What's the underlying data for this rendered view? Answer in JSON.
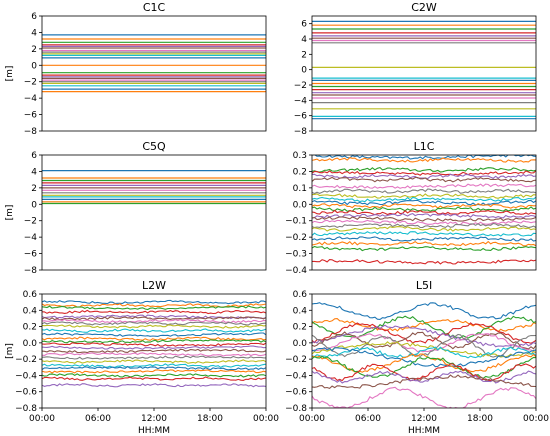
{
  "chart_data": [
    {
      "type": "line",
      "title": "C1C",
      "ylabel": "[m]",
      "xlabel": "",
      "ylim": [
        -8,
        6
      ],
      "yticks": [
        "−8",
        "−6",
        "−4",
        "−2",
        "0",
        "2",
        "4",
        "6"
      ],
      "xticks": [],
      "grid": false,
      "legend": "none",
      "levels": [
        3.7,
        3.2,
        2.8,
        2.5,
        2.3,
        2.1,
        1.8,
        1.6,
        1.4,
        1.2,
        0.9,
        0.0,
        -0.9,
        -1.2,
        -1.4,
        -1.6,
        -1.8,
        -2.0,
        -2.2,
        -2.5,
        -2.9,
        -3.2
      ],
      "noise": 0
    },
    {
      "type": "line",
      "title": "C2W",
      "ylabel": "",
      "xlabel": "",
      "ylim": [
        -8,
        7
      ],
      "yticks": [
        "−8",
        "−6",
        "−4",
        "−2",
        "0",
        "2",
        "4",
        "6"
      ],
      "xticks": [],
      "grid": false,
      "legend": "none",
      "levels": [
        6.3,
        5.8,
        5.3,
        4.8,
        4.4,
        4.1,
        3.8,
        3.5,
        0.3,
        -1.1,
        -1.4,
        -1.8,
        -2.2,
        -2.6,
        -3.0,
        -3.3,
        -3.7,
        -4.3,
        -5.1,
        -6.1,
        -6.4
      ],
      "noise": 0
    },
    {
      "type": "line",
      "title": "C5Q",
      "ylabel": "[m]",
      "xlabel": "",
      "ylim": [
        -8,
        6
      ],
      "yticks": [
        "−8",
        "−6",
        "−4",
        "−2",
        "0",
        "2",
        "4",
        "6"
      ],
      "xticks": [],
      "grid": false,
      "legend": "none",
      "levels": [
        4.1,
        3.2,
        2.9,
        2.6,
        2.3,
        2.0,
        1.7,
        1.4,
        1.1,
        0.9,
        0.6,
        0.3,
        0.1
      ],
      "noise": 0
    },
    {
      "type": "line",
      "title": "L1C",
      "ylabel": "",
      "xlabel": "",
      "ylim": [
        -0.4,
        0.3
      ],
      "yticks": [
        "−0.4",
        "−0.3",
        "−0.2",
        "−0.1",
        "0.0",
        "0.1",
        "0.2",
        "0.3"
      ],
      "xticks": [],
      "grid": false,
      "legend": "none",
      "levels": [
        0.29,
        0.27,
        0.21,
        0.19,
        0.17,
        0.15,
        0.11,
        0.08,
        0.05,
        0.03,
        0.01,
        -0.01,
        -0.03,
        -0.05,
        -0.07,
        -0.09,
        -0.11,
        -0.13,
        -0.15,
        -0.18,
        -0.21,
        -0.24,
        -0.27,
        -0.35
      ],
      "noise": 0.008
    },
    {
      "type": "line",
      "title": "L2W",
      "ylabel": "[m]",
      "xlabel": "HH:MM",
      "ylim": [
        -0.8,
        0.6
      ],
      "yticks": [
        "−0.8",
        "−0.6",
        "−0.4",
        "−0.2",
        "0.0",
        "0.2",
        "0.4",
        "0.6"
      ],
      "xticks": [
        "00:00",
        "06:00",
        "12:00",
        "18:00",
        "00:00"
      ],
      "grid": false,
      "legend": "none",
      "levels": [
        0.5,
        0.46,
        0.43,
        0.38,
        0.32,
        0.3,
        0.27,
        0.24,
        0.2,
        0.15,
        0.1,
        0.05,
        0.02,
        -0.02,
        -0.06,
        -0.1,
        -0.14,
        -0.18,
        -0.23,
        -0.28,
        -0.31,
        -0.35,
        -0.4,
        -0.44,
        -0.52
      ],
      "noise": 0.012
    },
    {
      "type": "line",
      "title": "L5I",
      "ylabel": "",
      "xlabel": "HH:MM",
      "ylim": [
        -0.8,
        0.6
      ],
      "yticks": [
        "−0.8",
        "−0.6",
        "−0.4",
        "−0.2",
        "0.0",
        "0.2",
        "0.4",
        "0.6"
      ],
      "xticks": [
        "00:00",
        "06:00",
        "12:00",
        "18:00",
        "00:00"
      ],
      "grid": false,
      "legend": "none",
      "levels": [
        0.39,
        0.22,
        0.19,
        0.12,
        0.08,
        0.03,
        0.0,
        -0.04,
        -0.08,
        -0.12,
        -0.18,
        -0.25,
        -0.3,
        -0.36,
        -0.42,
        -0.48,
        -0.68
      ],
      "noise": 0.02,
      "wavy": true
    }
  ],
  "colors": [
    "#1f77b4",
    "#ff7f0e",
    "#2ca02c",
    "#d62728",
    "#9467bd",
    "#8c564b",
    "#e377c2",
    "#7f7f7f",
    "#bcbd22",
    "#17becf"
  ]
}
